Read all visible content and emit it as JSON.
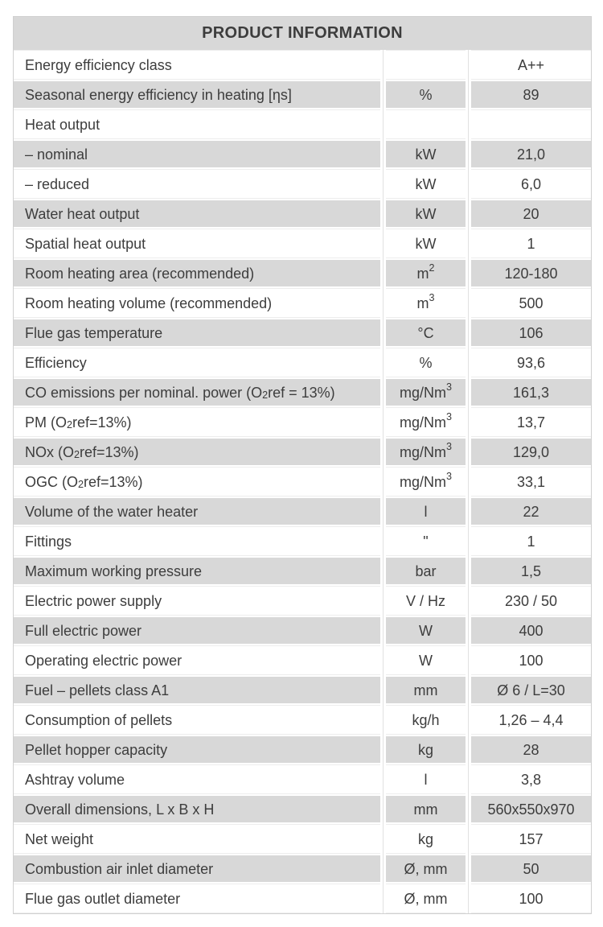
{
  "page": {
    "background_color": "#ffffff"
  },
  "table": {
    "title": "PRODUCT INFORMATION",
    "colors": {
      "header_bg": "#d8d8d8",
      "row_shaded_bg": "#d8d8d8",
      "row_plain_bg": "#ffffff",
      "text": "#3d3d3d",
      "outer_border": "#d0d0d0",
      "gridline": "#e0e0e0"
    },
    "note": "sup marked with ^..^, sub marked with ~..~",
    "rows": [
      {
        "label": "Energy efficiency class",
        "unit": "",
        "value": "A++"
      },
      {
        "label": "Seasonal energy efficiency in heating [ηs]",
        "unit": "%",
        "value": "89"
      },
      {
        "label": "Heat output",
        "unit": "",
        "value": ""
      },
      {
        "label": "– nominal",
        "unit": "kW",
        "value": "21,0"
      },
      {
        "label": "– reduced",
        "unit": "kW",
        "value": "6,0"
      },
      {
        "label": "Water heat output",
        "unit": "kW",
        "value": "20"
      },
      {
        "label": "Spatial heat output",
        "unit": "kW",
        "value": "1"
      },
      {
        "label": "Room heating area (recommended)",
        "unit": "m^2^",
        "value": "120-180"
      },
      {
        "label": "Room heating volume (recommended)",
        "unit": "m^3^",
        "value": "500"
      },
      {
        "label": "Flue gas temperature",
        "unit": "°C",
        "value": "106"
      },
      {
        "label": "Efficiency",
        "unit": "%",
        "value": "93,6"
      },
      {
        "label": "CO emissions per nominal. power (O~2~ref = 13%)",
        "unit": "mg/Nm^3^",
        "value": "161,3"
      },
      {
        "label": "PM (O~2~ref=13%)",
        "unit": "mg/Nm^3^",
        "value": "13,7"
      },
      {
        "label": "NOx (O~2~ref=13%)",
        "unit": "mg/Nm^3^",
        "value": "129,0"
      },
      {
        "label": "OGC (O~2~ref=13%)",
        "unit": "mg/Nm^3^",
        "value": "33,1"
      },
      {
        "label": "Volume of the water heater",
        "unit": "l",
        "value": "22"
      },
      {
        "label": "Fittings",
        "unit": "\"",
        "value": "1"
      },
      {
        "label": "Maximum working pressure",
        "unit": "bar",
        "value": "1,5"
      },
      {
        "label": "Electric power supply",
        "unit": "V / Hz",
        "value": "230 / 50"
      },
      {
        "label": "Full electric power",
        "unit": "W",
        "value": "400"
      },
      {
        "label": "Operating electric power",
        "unit": "W",
        "value": "100"
      },
      {
        "label": "Fuel – pellets class A1",
        "unit": "mm",
        "value": "Ø 6 / L=30"
      },
      {
        "label": "Consumption of pellets",
        "unit": "kg/h",
        "value": "1,26 – 4,4"
      },
      {
        "label": "Pellet hopper capacity",
        "unit": "kg",
        "value": "28"
      },
      {
        "label": "Ashtray volume",
        "unit": "l",
        "value": "3,8"
      },
      {
        "label": "Overall dimensions, L x B x H",
        "unit": "mm",
        "value": "560x550x970"
      },
      {
        "label": "Net weight",
        "unit": "kg",
        "value": "157"
      },
      {
        "label": "Combustion air inlet diameter",
        "unit": "Ø, mm",
        "value": "50"
      },
      {
        "label": "Flue gas outlet diameter",
        "unit": "Ø, mm",
        "value": "100"
      }
    ]
  }
}
